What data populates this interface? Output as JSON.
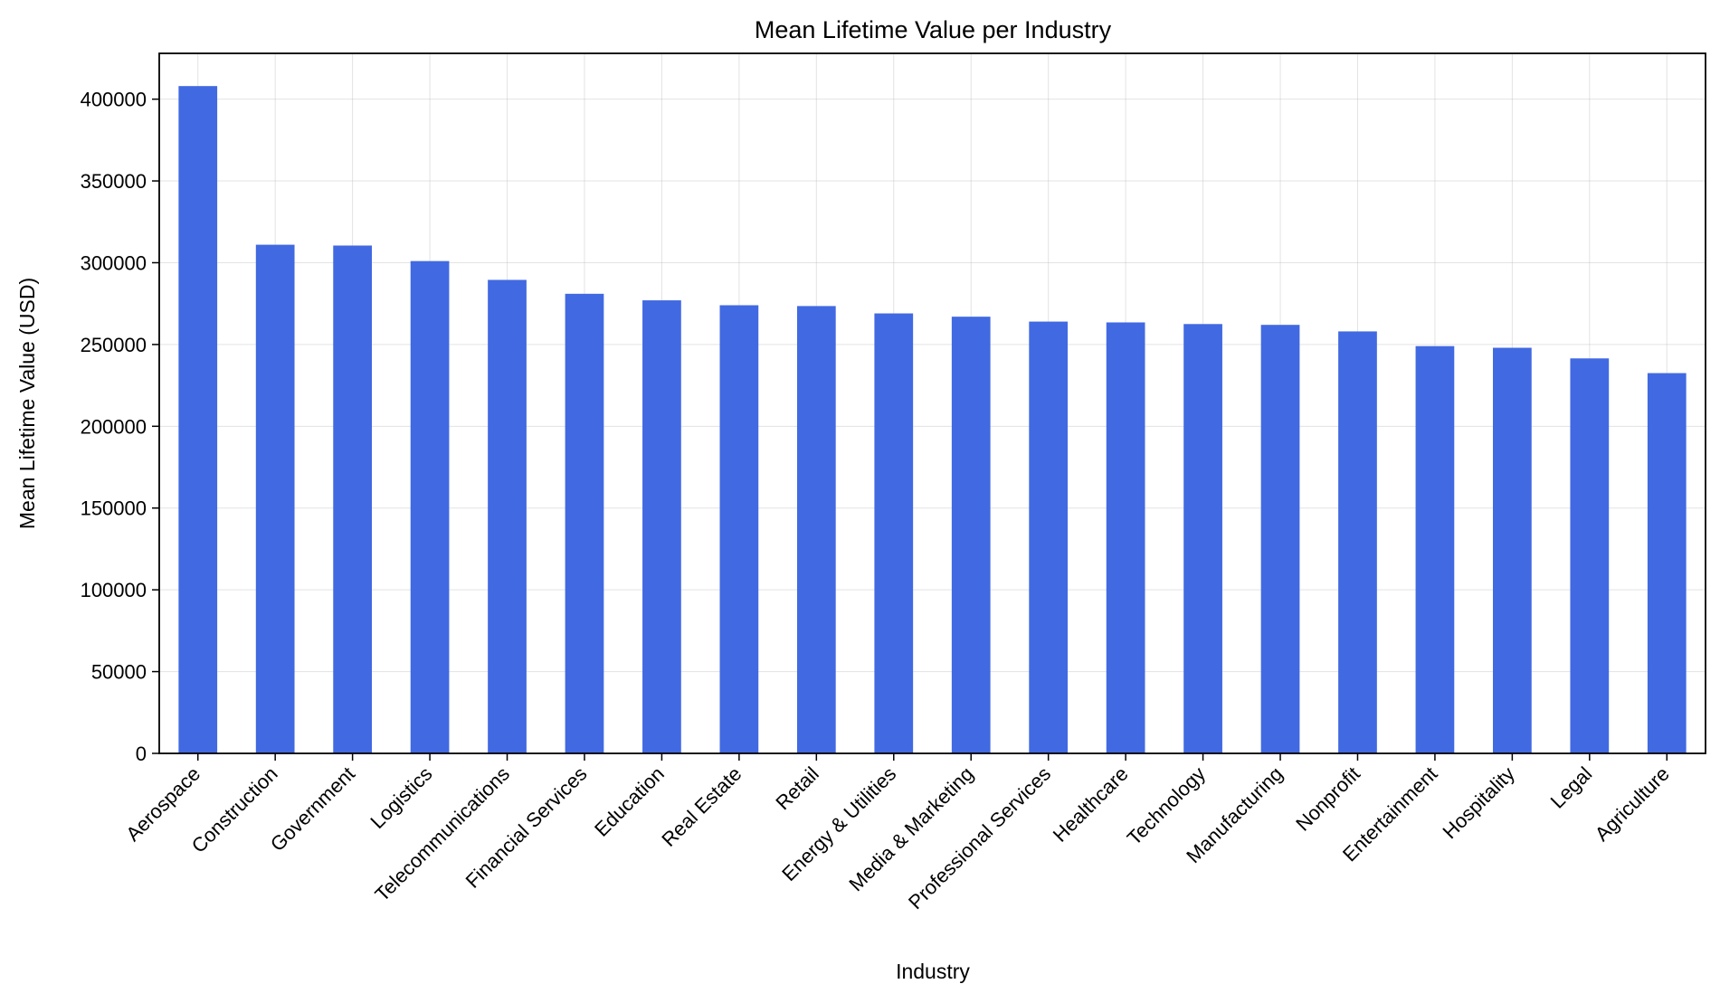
{
  "chart_data": {
    "type": "bar",
    "title": "Mean Lifetime Value per Industry",
    "xlabel": "Industry",
    "ylabel": "Mean Lifetime Value (USD)",
    "categories": [
      "Aerospace",
      "Construction",
      "Government",
      "Logistics",
      "Telecommunications",
      "Financial Services",
      "Education",
      "Real Estate",
      "Retail",
      "Energy & Utilities",
      "Media & Marketing",
      "Professional Services",
      "Healthcare",
      "Technology",
      "Manufacturing",
      "Nonprofit",
      "Entertainment",
      "Hospitality",
      "Legal",
      "Agriculture"
    ],
    "values": [
      408000,
      311000,
      310500,
      301000,
      289500,
      281000,
      277000,
      274000,
      273500,
      269000,
      267000,
      264000,
      263500,
      262500,
      262000,
      258000,
      249000,
      248000,
      241500,
      232500
    ],
    "ylim": [
      0,
      428000
    ],
    "yticks": [
      0,
      50000,
      100000,
      150000,
      200000,
      250000,
      300000,
      350000,
      400000
    ],
    "ytick_labels": [
      "0",
      "50000",
      "100000",
      "150000",
      "200000",
      "250000",
      "300000",
      "350000",
      "400000"
    ],
    "grid": true,
    "legend": "none",
    "bar_color": "#4169e1"
  }
}
